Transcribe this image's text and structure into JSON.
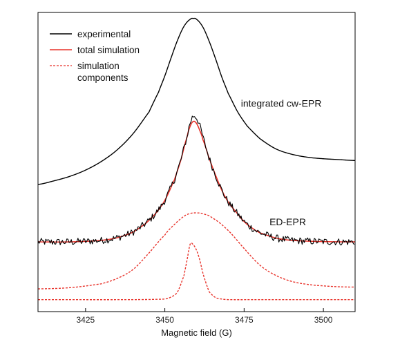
{
  "chart_data": {
    "type": "line",
    "xlabel": "Magnetic field (G)",
    "ylabel": "",
    "xlim": [
      3410,
      3510
    ],
    "ylim": [
      0,
      1
    ],
    "x_ticks": [
      3425,
      3450,
      3475,
      3500
    ],
    "y_ticks_shown": false,
    "grid": false,
    "legend": {
      "placement": "top-left",
      "entries": [
        {
          "label": "experimental",
          "color": "#000000",
          "style": "solid"
        },
        {
          "label": "total simulation",
          "color": "#e8322a",
          "style": "solid"
        },
        {
          "label": "simulation\ncomponents",
          "label_lines": [
            "simulation",
            "components"
          ],
          "color": "#e8322a",
          "style": "dashed"
        }
      ]
    },
    "annotations": [
      {
        "text": "integrated cw-EPR",
        "x": 3474,
        "y": 0.685
      },
      {
        "text": "ED-EPR",
        "x": 3483,
        "y": 0.289
      }
    ],
    "series": [
      {
        "label": "integrated cw-EPR",
        "color": "#000000",
        "style": "solid",
        "noise": 0,
        "x": [
          3410,
          3415,
          3420,
          3425,
          3430,
          3435,
          3440,
          3445,
          3448,
          3450,
          3452,
          3454,
          3456,
          3458,
          3459,
          3460,
          3462,
          3464,
          3466,
          3468,
          3470,
          3473,
          3476,
          3480,
          3485,
          3490,
          3495,
          3500,
          3505,
          3510
        ],
        "y": [
          0.425,
          0.437,
          0.452,
          0.473,
          0.502,
          0.541,
          0.595,
          0.667,
          0.733,
          0.788,
          0.849,
          0.907,
          0.953,
          0.977,
          0.98,
          0.977,
          0.951,
          0.903,
          0.845,
          0.783,
          0.729,
          0.667,
          0.62,
          0.578,
          0.544,
          0.526,
          0.516,
          0.511,
          0.508,
          0.505
        ]
      },
      {
        "label": "ED-EPR experimental",
        "color": "#000000",
        "style": "solid",
        "noise": 0.012,
        "x": [
          3410,
          3420,
          3430,
          3435,
          3440,
          3444,
          3447,
          3450,
          3453,
          3455,
          3457,
          3458,
          3459,
          3460,
          3461,
          3462,
          3464,
          3466,
          3468,
          3470,
          3472,
          3475,
          3478,
          3480,
          3485,
          3490,
          3500,
          3510
        ],
        "y": [
          0.233,
          0.233,
          0.238,
          0.247,
          0.266,
          0.295,
          0.327,
          0.372,
          0.44,
          0.505,
          0.583,
          0.631,
          0.654,
          0.648,
          0.621,
          0.582,
          0.512,
          0.456,
          0.405,
          0.366,
          0.338,
          0.301,
          0.276,
          0.263,
          0.246,
          0.238,
          0.234,
          0.233
        ]
      },
      {
        "label": "ED-EPR total simulation",
        "color": "#e8322a",
        "style": "solid",
        "noise": 0,
        "x": [
          3410,
          3420,
          3430,
          3435,
          3440,
          3444,
          3447,
          3450,
          3453,
          3455,
          3457,
          3458,
          3459,
          3460,
          3461,
          3462,
          3464,
          3466,
          3468,
          3470,
          3472,
          3475,
          3478,
          3480,
          3485,
          3490,
          3500,
          3510
        ],
        "y": [
          0.233,
          0.233,
          0.238,
          0.247,
          0.266,
          0.295,
          0.327,
          0.372,
          0.44,
          0.505,
          0.583,
          0.62,
          0.636,
          0.629,
          0.606,
          0.575,
          0.512,
          0.456,
          0.405,
          0.366,
          0.338,
          0.301,
          0.276,
          0.263,
          0.246,
          0.238,
          0.234,
          0.233
        ]
      },
      {
        "label": "simulation component (broad)",
        "color": "#e8322a",
        "style": "dashed",
        "noise": 0,
        "x": [
          3410,
          3420,
          3430,
          3435,
          3440,
          3445,
          3450,
          3453,
          3456,
          3458,
          3460,
          3462,
          3465,
          3470,
          3475,
          3480,
          3485,
          3490,
          3495,
          3500,
          3505,
          3510
        ],
        "y": [
          0.076,
          0.08,
          0.093,
          0.111,
          0.141,
          0.196,
          0.256,
          0.291,
          0.318,
          0.328,
          0.33,
          0.327,
          0.313,
          0.271,
          0.211,
          0.155,
          0.121,
          0.101,
          0.091,
          0.086,
          0.083,
          0.082
        ]
      },
      {
        "label": "simulation component (narrow)",
        "color": "#e8322a",
        "style": "dashed",
        "noise": 0,
        "x": [
          3410,
          3440,
          3450,
          3452,
          3454,
          3456,
          3457,
          3458,
          3459,
          3460,
          3461,
          3462,
          3463,
          3464,
          3466,
          3468,
          3470,
          3480,
          3510
        ],
        "y": [
          0.04,
          0.04,
          0.042,
          0.049,
          0.066,
          0.119,
          0.172,
          0.226,
          0.223,
          0.205,
          0.173,
          0.129,
          0.095,
          0.066,
          0.047,
          0.042,
          0.04,
          0.04,
          0.04
        ]
      }
    ]
  }
}
